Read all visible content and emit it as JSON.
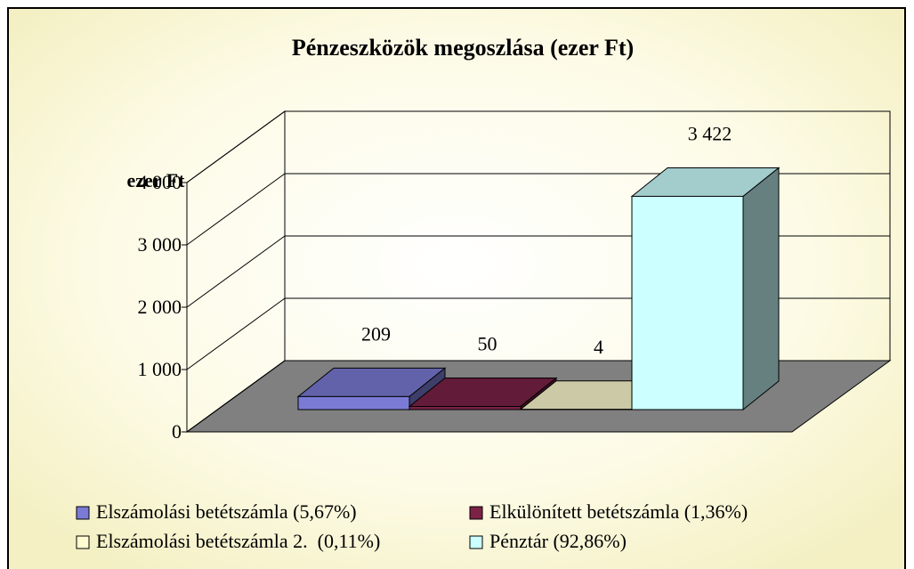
{
  "chart_data": {
    "type": "bar3d",
    "title": "Pénzeszközök megoszlása (ezer Ft)",
    "y_label": "ezer Ft",
    "series": [
      {
        "name": "Elszámolási betétszámla (5,67%)",
        "color": "#7b7bd6",
        "values": [
          209
        ]
      },
      {
        "name": "Elkülönített betétszámla (1,36%)",
        "color": "#7b2246",
        "values": [
          50
        ]
      },
      {
        "name": "Elszámolási betétszámla 2.  (0,11%)",
        "color": "#fffcd0",
        "values": [
          4
        ]
      },
      {
        "name": "Pénztár (92,86%)",
        "color": "#ccffff",
        "values": [
          3422
        ],
        "value_labels": [
          "3 422"
        ]
      }
    ],
    "ylim": [
      0,
      4000
    ],
    "yticks": [
      0,
      {
        "value": 1000,
        "label": "1 000"
      },
      {
        "value": 2000,
        "label": "2 000"
      },
      {
        "value": 3000,
        "label": "3 000"
      },
      {
        "value": 4000,
        "label": "4 000"
      }
    ],
    "grid": true
  }
}
